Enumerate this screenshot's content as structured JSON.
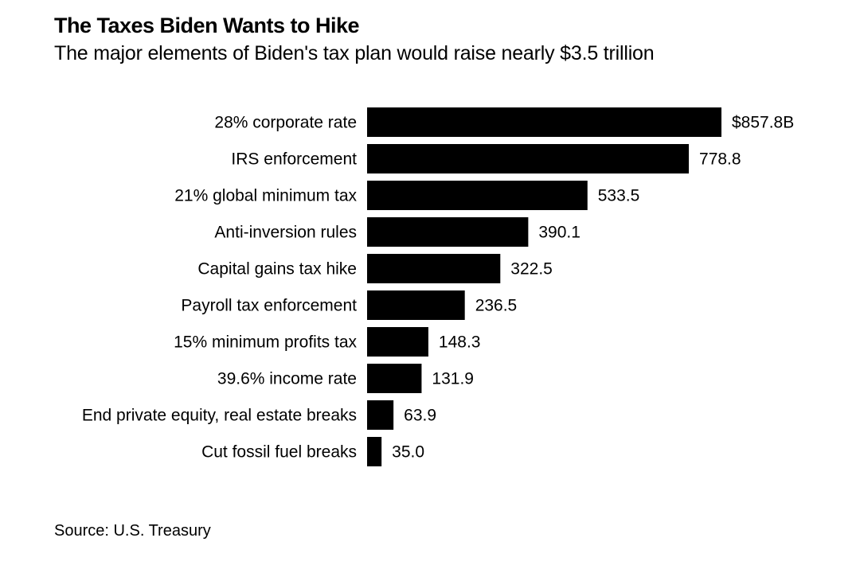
{
  "chart_data": {
    "type": "bar",
    "orientation": "horizontal",
    "title": "The Taxes Biden Wants to Hike",
    "subtitle": "The major elements of Biden's tax plan would raise nearly $3.5 trillion",
    "source": "Source: U.S. Treasury",
    "unit_prefix": "$",
    "unit_suffix": "B",
    "categories": [
      "28% corporate rate",
      "IRS enforcement",
      "21% global minimum tax",
      "Anti-inversion rules",
      "Capital gains tax hike",
      "Payroll tax enforcement",
      "15% minimum profits tax",
      "39.6% income rate",
      "End private equity, real estate breaks",
      "Cut fossil fuel breaks"
    ],
    "values": [
      857.8,
      778.8,
      533.5,
      390.1,
      322.5,
      236.5,
      148.3,
      131.9,
      63.9,
      35.0
    ],
    "value_labels": [
      "$857.8B",
      "778.8",
      "533.5",
      "390.1",
      "322.5",
      "236.5",
      "148.3",
      "131.9",
      "63.9",
      "35.0"
    ],
    "xlim": [
      0,
      857.8
    ],
    "grid": false,
    "bar_color": "#000000"
  }
}
